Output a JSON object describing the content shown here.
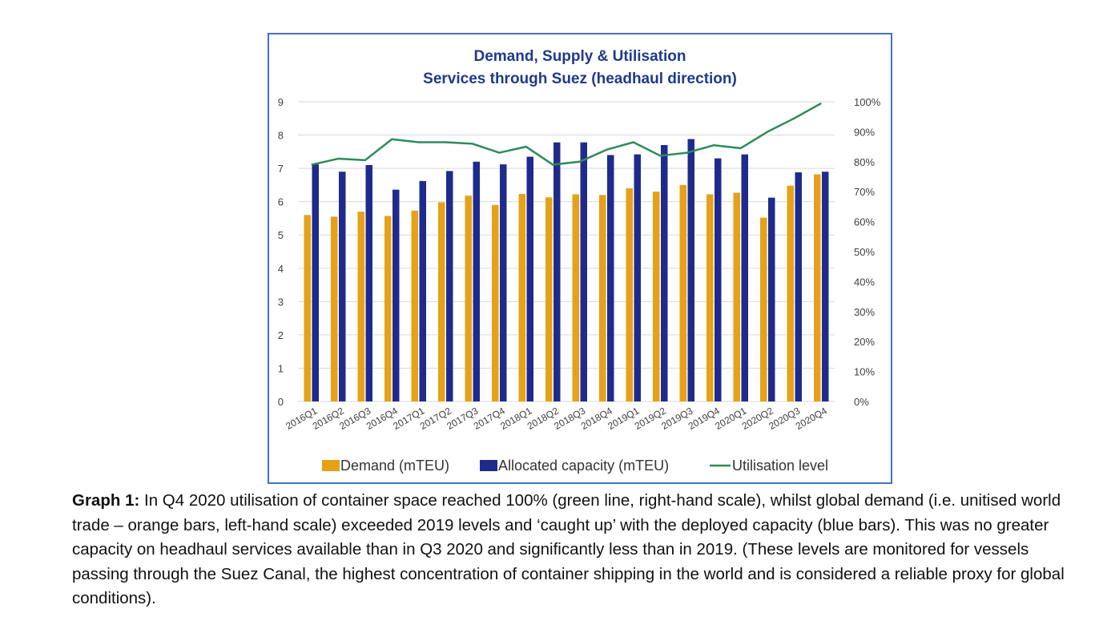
{
  "chart_data": {
    "type": "bar",
    "title": "Demand, Supply & Utilisation",
    "subtitle": "Services through Suez (headhaul direction)",
    "categories": [
      "2016Q1",
      "2016Q2",
      "2016Q3",
      "2016Q4",
      "2017Q1",
      "2017Q2",
      "2017Q3",
      "2017Q4",
      "2018Q1",
      "2018Q2",
      "2018Q3",
      "2018Q4",
      "2019Q1",
      "2019Q2",
      "2019Q3",
      "2019Q4",
      "2020Q1",
      "2020Q2",
      "2020Q3",
      "2020Q4"
    ],
    "series": [
      {
        "name": "Demand (mTEU)",
        "type": "bar",
        "axis": "left",
        "color": "#e6a118",
        "values": [
          5.6,
          5.55,
          5.7,
          5.57,
          5.73,
          5.98,
          6.18,
          5.9,
          6.23,
          6.13,
          6.22,
          6.2,
          6.4,
          6.3,
          6.5,
          6.22,
          6.27,
          5.52,
          6.48,
          6.82
        ]
      },
      {
        "name": "Allocated capacity (mTEU)",
        "type": "bar",
        "axis": "left",
        "color": "#1f2b8c",
        "values": [
          7.12,
          6.9,
          7.1,
          6.36,
          6.62,
          6.92,
          7.2,
          7.12,
          7.35,
          7.78,
          7.78,
          7.4,
          7.42,
          7.7,
          7.88,
          7.3,
          7.42,
          6.12,
          6.88,
          6.9
        ]
      },
      {
        "name": "Utilisation level",
        "type": "line",
        "axis": "right",
        "color": "#2e8b57",
        "values": [
          79,
          81,
          80.5,
          87.5,
          86.5,
          86.5,
          86,
          83,
          85,
          79,
          80,
          84,
          86.5,
          82,
          83,
          85.5,
          84.5,
          90,
          94.5,
          99.5
        ]
      }
    ],
    "y_left": {
      "min": 0,
      "max": 9,
      "ticks": [
        "0",
        "1",
        "2",
        "3",
        "4",
        "5",
        "6",
        "7",
        "8",
        "9"
      ]
    },
    "y_right": {
      "min": 0,
      "max": 100,
      "ticks": [
        "0%",
        "10%",
        "20%",
        "30%",
        "40%",
        "50%",
        "60%",
        "70%",
        "80%",
        "90%",
        "100%"
      ]
    },
    "grid": true,
    "legend_position": "bottom"
  },
  "caption": {
    "bold": "Graph 1:",
    "text": " In Q4 2020 utilisation of container space reached 100% (green line, right-hand scale), whilst global demand (i.e. unitised world trade – orange bars, left-hand scale) exceeded 2019 levels and ‘caught up’ with the deployed capacity (blue bars). This was no greater capacity on headhaul services available than in Q3 2020 and significantly less than in 2019. (These levels are monitored for vessels passing through the Suez Canal, the highest concentration of container shipping in the world and is considered a reliable proxy for global conditions)."
  }
}
